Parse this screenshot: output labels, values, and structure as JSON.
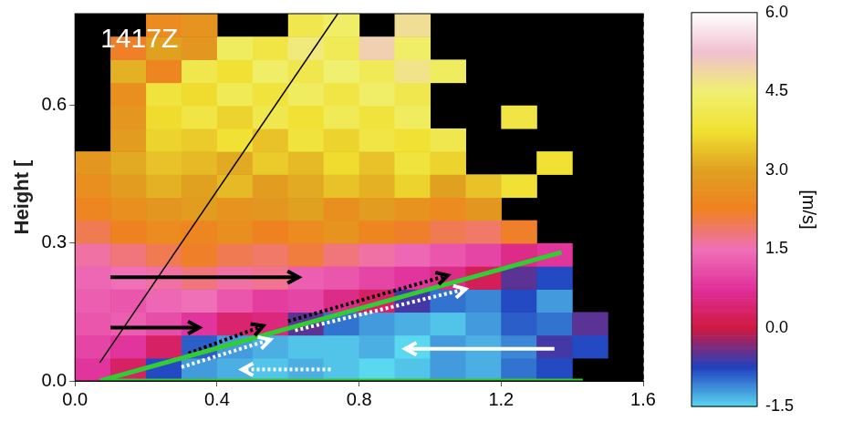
{
  "chart_data": {
    "type": "heatmap",
    "ylabel": "Height [",
    "annotation": "1417Z",
    "grid": true,
    "xlim": [
      0,
      1.6
    ],
    "xticks": [
      {
        "value": 0,
        "label": "0.0"
      },
      0.4,
      0.8,
      1.2,
      1.6
    ],
    "ylim": [
      0,
      0.8
    ],
    "yticks": [
      {
        "value": 0,
        "label": "0.0"
      },
      0.3,
      0.6
    ],
    "x_edges": [
      0,
      0.1,
      0.2,
      0.3,
      0.4,
      0.5,
      0.6,
      0.7,
      0.8,
      0.9,
      1.0,
      1.1,
      1.2,
      1.3,
      1.4,
      1.5,
      1.6
    ],
    "y_edges": [
      0,
      0.05,
      0.1,
      0.15,
      0.2,
      0.25,
      0.3,
      0.35,
      0.4,
      0.45,
      0.5,
      0.55,
      0.6,
      0.65,
      0.7,
      0.75,
      0.8
    ],
    "cells": [
      [
        0.8,
        0.3,
        -0.8,
        -1.2,
        -1.3,
        -1.4,
        -1.3,
        -1.4,
        -1.5,
        -1.4,
        -1.2,
        -1.3,
        -1.0,
        -0.8,
        null,
        null
      ],
      [
        1.0,
        0.8,
        0.3,
        -0.9,
        -1.2,
        -1.3,
        -1.4,
        -1.4,
        -1.3,
        -1.5,
        -1.2,
        -1.3,
        -1.1,
        -0.6,
        -0.8,
        null
      ],
      [
        1.2,
        1.3,
        1.1,
        0.8,
        0.4,
        0.5,
        -0.5,
        -1.0,
        -1.2,
        -1.3,
        -1.4,
        -1.2,
        -0.9,
        -1.0,
        -0.5,
        null
      ],
      [
        1.3,
        1.2,
        1.4,
        1.5,
        1.2,
        0.9,
        1.0,
        0.6,
        0.3,
        -0.6,
        -1.0,
        -1.1,
        -0.8,
        -1.2,
        null,
        null
      ],
      [
        1.4,
        1.5,
        1.6,
        1.8,
        1.6,
        1.7,
        1.3,
        1.2,
        1.0,
        0.8,
        0.6,
        0.2,
        -0.5,
        -0.8,
        null,
        null
      ],
      [
        1.6,
        1.8,
        2.0,
        2.2,
        2.0,
        1.9,
        2.1,
        1.8,
        1.6,
        1.4,
        1.2,
        1.0,
        0.6,
        0.8,
        null,
        null
      ],
      [
        2.0,
        2.3,
        2.5,
        2.4,
        2.6,
        2.3,
        2.5,
        2.7,
        2.4,
        2.2,
        2.0,
        1.9,
        2.2,
        null,
        null,
        null
      ],
      [
        2.4,
        2.6,
        2.8,
        2.9,
        2.7,
        2.8,
        3.0,
        2.6,
        2.9,
        2.7,
        2.5,
        2.8,
        null,
        null,
        null,
        null
      ],
      [
        2.6,
        2.9,
        3.2,
        3.0,
        3.3,
        2.9,
        3.1,
        3.4,
        3.2,
        3.6,
        3.0,
        3.4,
        3.8,
        null,
        null,
        null
      ],
      [
        2.8,
        3.1,
        3.4,
        3.3,
        3.1,
        3.5,
        3.3,
        3.7,
        3.4,
        3.9,
        3.6,
        null,
        null,
        3.8,
        null,
        null
      ],
      [
        null,
        2.9,
        3.6,
        3.5,
        3.8,
        3.4,
        3.9,
        3.6,
        4.0,
        3.8,
        4.1,
        null,
        null,
        null,
        null,
        null
      ],
      [
        null,
        2.8,
        3.7,
        4.0,
        3.6,
        4.1,
        3.8,
        4.2,
        3.9,
        4.3,
        null,
        null,
        4.0,
        null,
        null,
        null
      ],
      [
        null,
        2.6,
        3.9,
        3.7,
        4.2,
        3.9,
        4.3,
        4.0,
        4.4,
        4.1,
        null,
        null,
        null,
        null,
        null,
        null
      ],
      [
        null,
        3.2,
        2.4,
        4.1,
        3.8,
        4.4,
        4.1,
        4.5,
        4.2,
        4.7,
        4.3,
        null,
        null,
        null,
        null,
        null
      ],
      [
        null,
        2.2,
        3.0,
        2.8,
        4.3,
        4.0,
        4.6,
        4.2,
        5.0,
        4.4,
        null,
        null,
        null,
        null,
        null,
        null
      ],
      [
        null,
        null,
        2.5,
        2.7,
        null,
        null,
        4.1,
        4.4,
        null,
        4.8,
        null,
        null,
        null,
        null,
        null,
        null
      ]
    ],
    "lines": [
      {
        "color": "#000000",
        "line_style": "thin",
        "x": [
          0.07,
          0.74
        ],
        "y": [
          0.04,
          0.8
        ]
      },
      {
        "color": "#33cc33",
        "line_style": "solid",
        "x": [
          0.07,
          1.43
        ],
        "y": [
          0,
          0
        ]
      },
      {
        "color": "#33cc33",
        "line_style": "solid",
        "x": [
          0.07,
          1.37
        ],
        "y": [
          0,
          0.28
        ]
      },
      {
        "color": "#000000",
        "line_style": "solid",
        "marker": "arrow",
        "x": [
          0.1,
          0.63
        ],
        "y": [
          0.226,
          0.226
        ]
      },
      {
        "color": "#000000",
        "line_style": "solid",
        "marker": "arrow",
        "x": [
          0.1,
          0.35
        ],
        "y": [
          0.116,
          0.116
        ]
      },
      {
        "color": "#000000",
        "line_style": "dotted",
        "marker": "arrow",
        "x": [
          0.32,
          0.53
        ],
        "y": [
          0.06,
          0.12
        ]
      },
      {
        "color": "#000000",
        "line_style": "dotted",
        "marker": "arrow",
        "x": [
          0.6,
          1.05
        ],
        "y": [
          0.13,
          0.23
        ]
      },
      {
        "color": "#ffffff",
        "line_style": "dotted",
        "marker": "arrow",
        "x": [
          0.3,
          0.55
        ],
        "y": [
          0.03,
          0.09
        ]
      },
      {
        "color": "#ffffff",
        "line_style": "dotted",
        "marker": "arrow",
        "x": [
          0.62,
          1.1
        ],
        "y": [
          0.11,
          0.2
        ]
      },
      {
        "color": "#ffffff",
        "line_style": "solid",
        "marker": "arrow",
        "x": [
          1.35,
          0.93
        ],
        "y": [
          0.07,
          0.07
        ]
      },
      {
        "color": "#ffffff",
        "line_style": "dotted",
        "marker": "arrow",
        "x": [
          0.72,
          0.47
        ],
        "y": [
          0.025,
          0.025
        ]
      }
    ],
    "colorbar": {
      "label": "[m/s]",
      "range": [
        -1.5,
        6
      ],
      "ticks": [
        -1.5,
        {
          "value": 0,
          "label": "0.0"
        },
        1.5,
        {
          "value": 3,
          "label": "3.0"
        },
        4.5,
        {
          "value": 6,
          "label": "6.0"
        }
      ],
      "colors": [
        "#5ad8f0",
        "#2040c0",
        "#d01840",
        "#e0309a",
        "#f070b8",
        "#f08020",
        "#e0a020",
        "#f0e030",
        "#f0f070",
        "#f0c0d0",
        "#ffffff"
      ]
    }
  }
}
